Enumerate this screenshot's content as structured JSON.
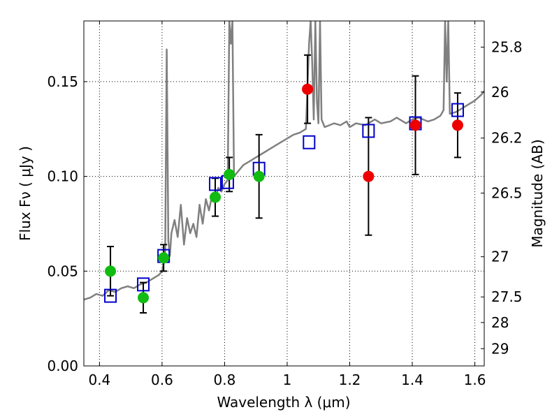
{
  "chart_data": {
    "type": "scatter",
    "xlabel": "Wavelength  λ (μm)",
    "ylabel": "Flux  Fν  ( μJy )",
    "y2label": "Magnitude (AB)",
    "xlim": [
      0.35,
      1.63
    ],
    "ylim": [
      0.0,
      0.182
    ],
    "xticks": [
      0.4,
      0.6,
      0.8,
      1.0,
      1.2,
      1.4,
      1.6
    ],
    "xtick_labels": [
      "0.4",
      "0.6",
      "0.8",
      "1",
      "1.2",
      "1.4",
      "1.6"
    ],
    "yticks": [
      0.0,
      0.05,
      0.1,
      0.15
    ],
    "ytick_labels": [
      "0.00",
      "0.05",
      "0.10",
      "0.15"
    ],
    "y2ticks": [
      {
        "label": "25.8",
        "flux": 0.1682
      },
      {
        "label": "26",
        "flux": 0.1445
      },
      {
        "label": "26.2",
        "flux": 0.1202
      },
      {
        "label": "26.5",
        "flux": 0.0912
      },
      {
        "label": "27",
        "flux": 0.0576
      },
      {
        "label": "27.5",
        "flux": 0.0364
      },
      {
        "label": "28",
        "flux": 0.0229
      },
      {
        "label": "29",
        "flux": 0.0091
      }
    ],
    "grid": true,
    "series": [
      {
        "name": "model SED",
        "style": "line",
        "color": "#808080",
        "x": [
          0.35,
          0.37,
          0.39,
          0.41,
          0.43,
          0.45,
          0.47,
          0.49,
          0.51,
          0.53,
          0.55,
          0.57,
          0.59,
          0.6,
          0.605,
          0.61,
          0.615,
          0.62,
          0.625,
          0.63,
          0.64,
          0.65,
          0.66,
          0.67,
          0.68,
          0.69,
          0.7,
          0.71,
          0.72,
          0.73,
          0.74,
          0.75,
          0.76,
          0.77,
          0.78,
          0.79,
          0.8,
          0.81,
          0.815,
          0.82,
          0.825,
          0.83,
          0.84,
          0.85,
          0.86,
          0.88,
          0.9,
          0.92,
          0.94,
          0.96,
          0.98,
          1.0,
          1.02,
          1.04,
          1.06,
          1.07,
          1.075,
          1.08,
          1.085,
          1.09,
          1.095,
          1.1,
          1.105,
          1.11,
          1.12,
          1.15,
          1.17,
          1.19,
          1.2,
          1.22,
          1.25,
          1.28,
          1.3,
          1.33,
          1.35,
          1.38,
          1.4,
          1.42,
          1.45,
          1.47,
          1.49,
          1.5,
          1.505,
          1.51,
          1.515,
          1.52,
          1.54,
          1.56,
          1.58,
          1.6,
          1.62,
          1.63
        ],
        "y": [
          0.035,
          0.036,
          0.038,
          0.037,
          0.04,
          0.039,
          0.041,
          0.042,
          0.041,
          0.043,
          0.044,
          0.046,
          0.048,
          0.05,
          0.054,
          0.06,
          0.167,
          0.066,
          0.058,
          0.07,
          0.077,
          0.068,
          0.085,
          0.064,
          0.078,
          0.07,
          0.075,
          0.068,
          0.085,
          0.075,
          0.088,
          0.082,
          0.09,
          0.088,
          0.094,
          0.092,
          0.096,
          0.098,
          0.182,
          0.17,
          0.182,
          0.1,
          0.102,
          0.104,
          0.106,
          0.108,
          0.11,
          0.112,
          0.114,
          0.116,
          0.118,
          0.12,
          0.122,
          0.123,
          0.125,
          0.17,
          0.182,
          0.16,
          0.13,
          0.182,
          0.14,
          0.128,
          0.182,
          0.13,
          0.126,
          0.128,
          0.127,
          0.129,
          0.126,
          0.128,
          0.127,
          0.13,
          0.128,
          0.129,
          0.131,
          0.128,
          0.13,
          0.131,
          0.129,
          0.13,
          0.132,
          0.135,
          0.182,
          0.15,
          0.182,
          0.133,
          0.134,
          0.136,
          0.138,
          0.14,
          0.143,
          0.145
        ]
      },
      {
        "name": "model photometry",
        "style": "open-square",
        "color": "#0000cc",
        "x": [
          0.435,
          0.54,
          0.605,
          0.77,
          0.81,
          0.91,
          1.07,
          1.26,
          1.41,
          1.545
        ],
        "y": [
          0.037,
          0.043,
          0.058,
          0.096,
          0.097,
          0.104,
          0.118,
          0.124,
          0.128,
          0.135
        ]
      },
      {
        "name": "observed (green)",
        "style": "filled-circle",
        "color": "#11bb11",
        "x": [
          0.435,
          0.54,
          0.605,
          0.77,
          0.815,
          0.91
        ],
        "y": [
          0.05,
          0.036,
          0.057,
          0.089,
          0.101,
          0.1
        ],
        "yerr": [
          0.013,
          0.008,
          0.007,
          0.01,
          0.009,
          0.022
        ]
      },
      {
        "name": "observed (red)",
        "style": "filled-circle",
        "color": "#ee0000",
        "x": [
          1.065,
          1.26,
          1.41,
          1.545
        ],
        "y": [
          0.146,
          0.1,
          0.127,
          0.127
        ],
        "yerr": [
          0.018,
          0.031,
          0.026,
          0.017
        ]
      }
    ]
  }
}
